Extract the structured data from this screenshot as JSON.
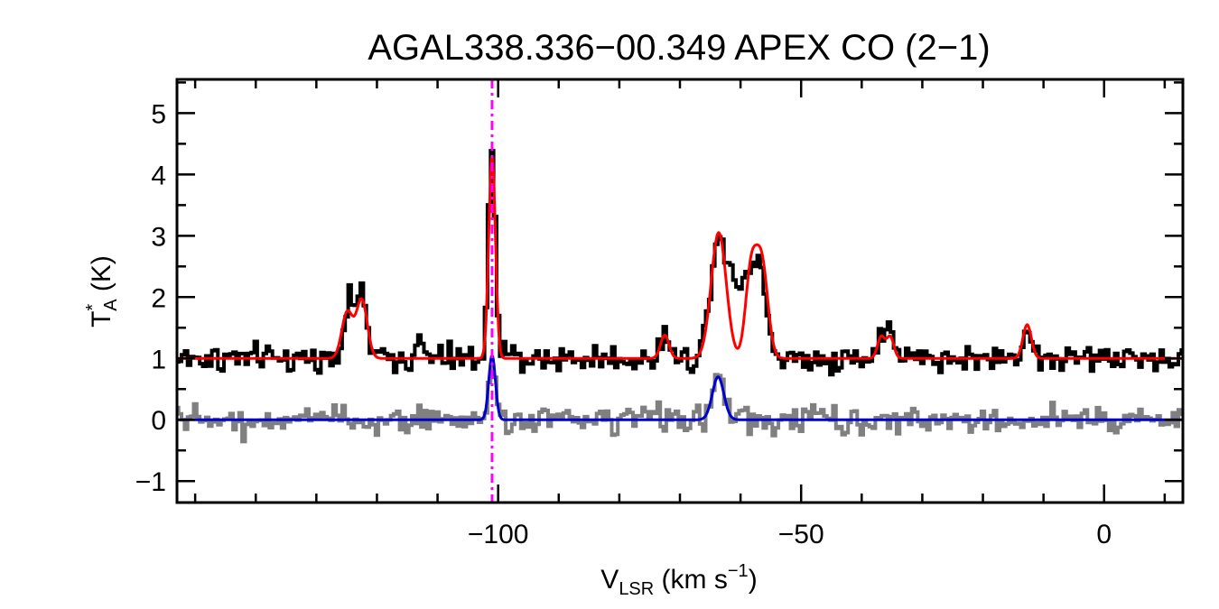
{
  "chart_data": {
    "type": "line",
    "title": "AGAL338.336−00.349  APEX CO (2−1)",
    "xlabel": {
      "main": "V",
      "sub": "LSR",
      "unit_pre": " (km s",
      "unit_sup": "−1",
      "unit_post": ")"
    },
    "ylabel": {
      "main": "T",
      "sup": "*",
      "sub": "A",
      "unit": " (K)"
    },
    "xlim": [
      -153,
      13
    ],
    "ylim": [
      -1.35,
      5.55
    ],
    "xticks": [
      -100,
      -50,
      0
    ],
    "xtick_labels": [
      "−100",
      "−50",
      "0"
    ],
    "yticks": [
      -1,
      0,
      1,
      2,
      3,
      4,
      5
    ],
    "ytick_labels": [
      "−1",
      "0",
      "1",
      "2",
      "3",
      "4",
      "5"
    ],
    "x_minor_step": 10,
    "y_minor_step": 0.5,
    "reference_line": {
      "x": -101.0,
      "color": "#ff00ff",
      "style": "dash-dot"
    },
    "series": [
      {
        "color": "#000000",
        "kind": "observed-spectrum",
        "baseline": 1.0,
        "noise_rms": 0.11,
        "peaks": [
          {
            "center": -124.7,
            "amp": 0.85,
            "sigma": 0.9
          },
          {
            "center": -122.6,
            "amp": 1.0,
            "sigma": 0.9
          },
          {
            "center": -113.0,
            "amp": 0.25,
            "sigma": 0.6
          },
          {
            "center": -101.0,
            "amp": 3.35,
            "sigma": 0.6
          },
          {
            "center": -72.5,
            "amp": 0.4,
            "sigma": 0.7
          },
          {
            "center": -63.7,
            "amp": 1.95,
            "sigma": 1.3
          },
          {
            "center": -61.3,
            "amp": 0.9,
            "sigma": 1.1
          },
          {
            "center": -59.0,
            "amp": 1.2,
            "sigma": 1.0
          },
          {
            "center": -56.8,
            "amp": 1.5,
            "sigma": 1.1
          },
          {
            "center": -36.6,
            "amp": 0.45,
            "sigma": 0.7
          },
          {
            "center": -35.2,
            "amp": 0.35,
            "sigma": 0.7
          },
          {
            "center": -12.7,
            "amp": 0.55,
            "sigma": 0.7
          }
        ]
      },
      {
        "color": "#ff0000",
        "kind": "model-fit",
        "baseline": 1.0,
        "peaks": [
          {
            "center": -124.9,
            "amp": 0.75,
            "sigma": 0.9
          },
          {
            "center": -122.5,
            "amp": 0.95,
            "sigma": 0.9
          },
          {
            "center": -101.0,
            "amp": 3.3,
            "sigma": 0.55
          },
          {
            "center": -72.5,
            "amp": 0.38,
            "sigma": 0.7
          },
          {
            "center": -63.6,
            "amp": 2.05,
            "sigma": 1.25
          },
          {
            "center": -58.3,
            "amp": 1.35,
            "sigma": 0.9
          },
          {
            "center": -56.5,
            "amp": 1.55,
            "sigma": 1.0
          },
          {
            "center": -36.8,
            "amp": 0.35,
            "sigma": 0.6
          },
          {
            "center": -35.3,
            "amp": 0.35,
            "sigma": 0.6
          },
          {
            "center": -12.7,
            "amp": 0.55,
            "sigma": 0.7
          }
        ]
      },
      {
        "color": "#808080",
        "kind": "observed-spectrum",
        "baseline": 0.0,
        "noise_rms": 0.11,
        "peaks": [
          {
            "center": -101.0,
            "amp": 1.0,
            "sigma": 0.55
          },
          {
            "center": -63.7,
            "amp": 0.75,
            "sigma": 1.0
          }
        ]
      },
      {
        "color": "#0000cc",
        "kind": "model-fit",
        "baseline": 0.0,
        "peaks": [
          {
            "center": -101.0,
            "amp": 1.05,
            "sigma": 0.55
          },
          {
            "center": -63.7,
            "amp": 0.7,
            "sigma": 0.95
          }
        ]
      }
    ]
  }
}
